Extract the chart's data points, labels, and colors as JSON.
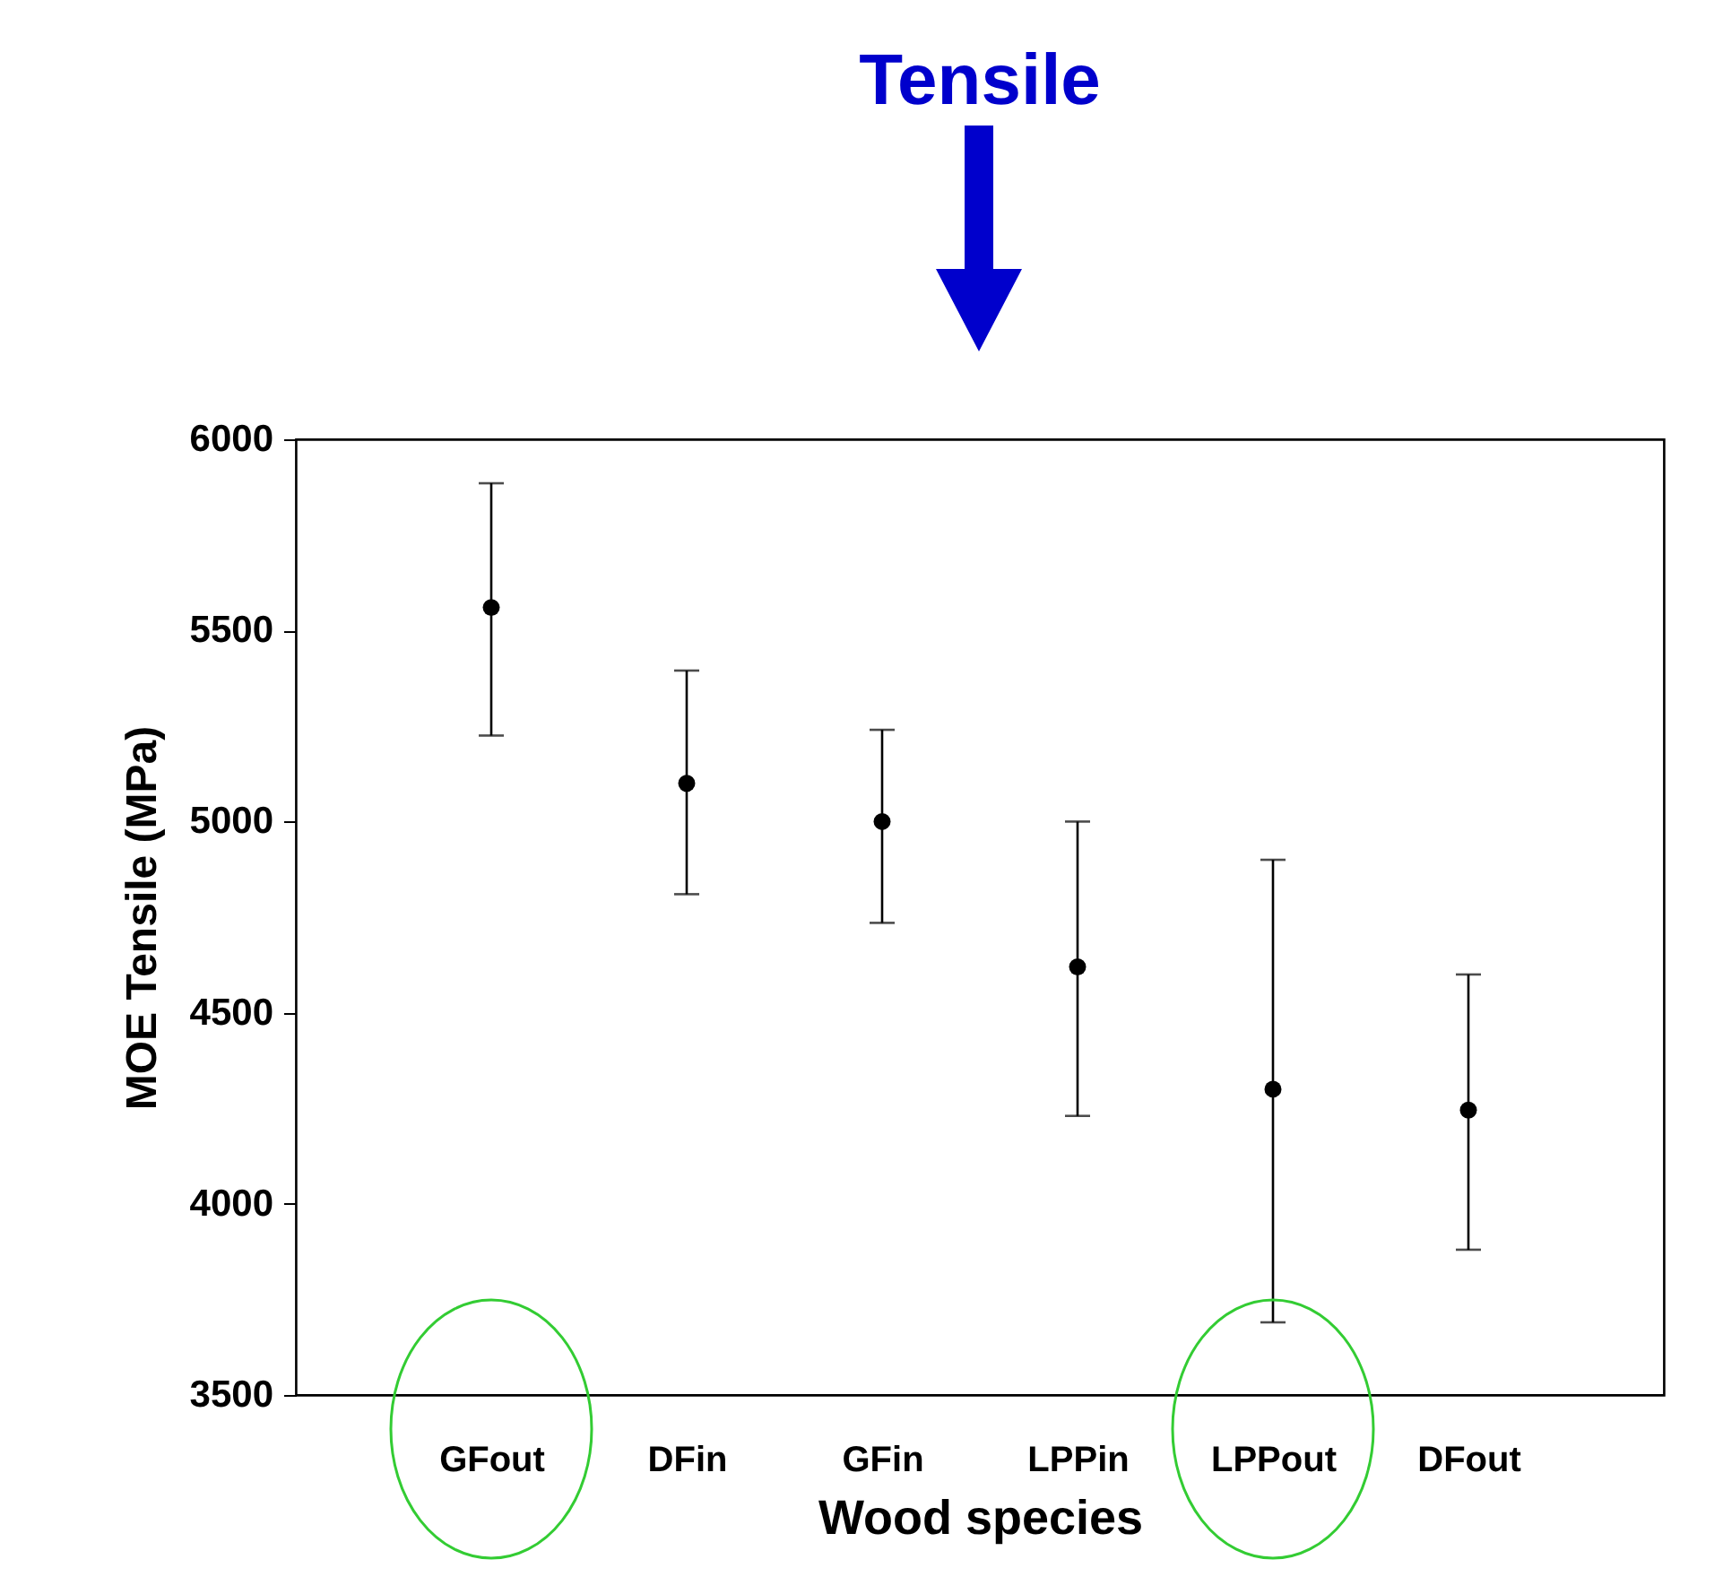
{
  "chart_data": {
    "type": "scatter",
    "title": "Tensile",
    "xlabel": "Wood species",
    "ylabel": "MOE Tensile (MPa)",
    "categories": [
      "GFout",
      "DFin",
      "GFin",
      "LPPin",
      "LPPout",
      "DFout"
    ],
    "values": [
      5560,
      5100,
      5000,
      4620,
      4300,
      4245
    ],
    "errors": [
      [
        5225,
        5885
      ],
      [
        4810,
        5395
      ],
      [
        4735,
        5240
      ],
      [
        4230,
        5000
      ],
      [
        3690,
        4900
      ],
      [
        3880,
        4600
      ]
    ],
    "color": "#000000",
    "marker": "circle",
    "ylim": [
      3500,
      6000
    ],
    "yticks": [
      3500,
      4000,
      4500,
      5000,
      5500,
      6000
    ],
    "grid": false
  }
}
